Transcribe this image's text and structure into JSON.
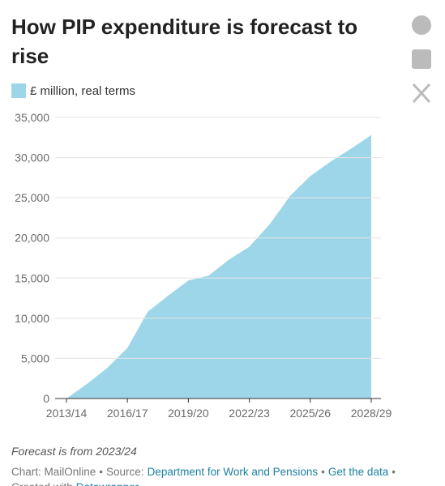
{
  "chart_data": {
    "type": "area",
    "title_lines": [
      "How PIP expenditure is forecast to",
      "rise"
    ],
    "categories": [
      "2013/14",
      null,
      null,
      "2016/17",
      null,
      null,
      "2019/20",
      null,
      null,
      "2022/23",
      null,
      null,
      "2025/26",
      null,
      null,
      "2028/29"
    ],
    "series": [
      {
        "name": "£ million, real terms",
        "color": "#9dd6e9",
        "values": [
          0,
          1800,
          3800,
          6300,
          10800,
          12800,
          14700,
          15300,
          17300,
          18900,
          21700,
          25200,
          27700,
          29500,
          31100,
          32800
        ]
      }
    ],
    "ylim": [
      0,
      35000
    ],
    "yticks": [
      0,
      {
        "value": 5000,
        "label": "5,000"
      },
      {
        "value": 10000,
        "label": "10,000"
      },
      {
        "value": 15000,
        "label": "15,000"
      },
      {
        "value": 20000,
        "label": "20,000"
      },
      {
        "value": 25000,
        "label": "25,000"
      },
      {
        "value": 30000,
        "label": "30,000"
      },
      {
        "value": 35000,
        "label": "35,000"
      }
    ],
    "grid": true,
    "note": "Forecast is from 2023/24",
    "footer": {
      "chart": "Chart: MailOnline",
      "separator": "•",
      "source_label": "Source:",
      "source": "Department for Work and Pensions",
      "get_data": "Get the data",
      "created": "Created with",
      "tool": "Datawrapper"
    }
  }
}
